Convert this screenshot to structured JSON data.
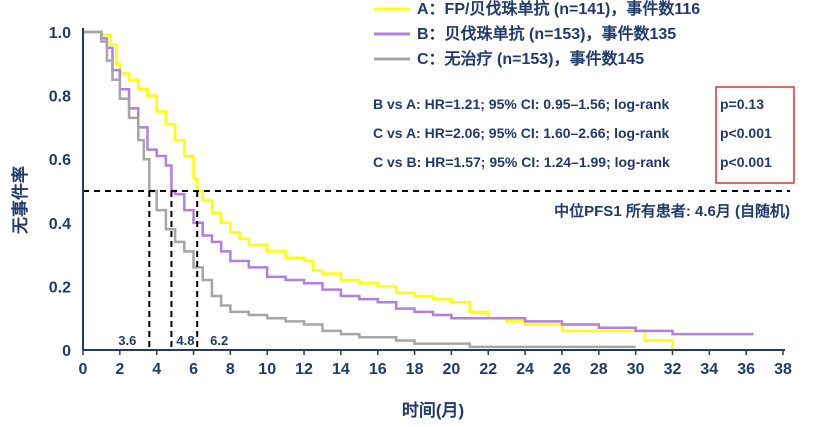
{
  "chart_data": {
    "type": "line",
    "title": "",
    "xlabel": "时间(月)",
    "ylabel": "无事件率",
    "xlim": [
      0,
      38
    ],
    "ylim": [
      0,
      1.0
    ],
    "x_ticks": [
      0,
      2,
      4,
      6,
      8,
      10,
      12,
      14,
      16,
      18,
      20,
      22,
      24,
      26,
      28,
      30,
      32,
      34,
      36,
      38
    ],
    "x_tick_labels": [
      "0",
      "2",
      "4",
      "6",
      "8",
      "10",
      "12",
      "14",
      "16",
      "18",
      "20",
      "22",
      "24",
      "26",
      "28",
      "30",
      "32",
      "34",
      "36",
      "38"
    ],
    "y_ticks": [
      0,
      0.2,
      0.4,
      0.6,
      0.8,
      1.0
    ],
    "y_tick_labels": [
      "0",
      "0.2",
      "0.4",
      "0.6",
      "0.8",
      "1.0"
    ],
    "grid": false,
    "legend_position": "top-right",
    "series": [
      {
        "name": "A：FP/贝伐珠单抗 (n=141)，事件数116",
        "color": "#ffff00",
        "x": [
          0,
          1,
          1.5,
          1.8,
          2.0,
          2.5,
          3.0,
          3.5,
          4.0,
          4.5,
          5.0,
          5.5,
          6.0,
          6.2,
          6.5,
          7.0,
          7.5,
          8.0,
          8.5,
          9.0,
          10.0,
          11.0,
          12.0,
          12.5,
          13.0,
          14.0,
          15.0,
          16.0,
          17.0,
          18.0,
          19.0,
          20.0,
          21.0,
          22.0,
          23.0,
          24.0,
          25.0,
          26.0,
          28.0,
          30.0,
          30.5,
          32.0
        ],
        "y": [
          1.0,
          0.99,
          0.96,
          0.9,
          0.87,
          0.85,
          0.82,
          0.8,
          0.75,
          0.71,
          0.66,
          0.61,
          0.54,
          0.5,
          0.47,
          0.43,
          0.4,
          0.37,
          0.35,
          0.33,
          0.31,
          0.29,
          0.28,
          0.25,
          0.24,
          0.22,
          0.21,
          0.2,
          0.18,
          0.17,
          0.16,
          0.15,
          0.12,
          0.1,
          0.09,
          0.08,
          0.08,
          0.06,
          0.06,
          0.06,
          0.03,
          0.0
        ]
      },
      {
        "name": "B：贝伐珠单抗 (n=153)，事件数135",
        "color": "#b07fe0",
        "x": [
          0,
          1,
          1.3,
          1.6,
          2.0,
          2.5,
          3.0,
          3.5,
          4.0,
          4.5,
          4.8,
          5.0,
          5.5,
          6.0,
          6.5,
          7.0,
          7.5,
          8.0,
          9.0,
          10.0,
          11.0,
          12.0,
          13.0,
          14.0,
          15.0,
          16.0,
          17.0,
          18.0,
          19.0,
          20.0,
          22.0,
          24.0,
          26.0,
          28.0,
          30.0,
          32.0,
          34.0,
          36.4
        ],
        "y": [
          1.0,
          0.98,
          0.95,
          0.88,
          0.82,
          0.76,
          0.7,
          0.63,
          0.61,
          0.58,
          0.5,
          0.49,
          0.44,
          0.4,
          0.36,
          0.34,
          0.31,
          0.28,
          0.26,
          0.23,
          0.22,
          0.21,
          0.19,
          0.17,
          0.16,
          0.15,
          0.13,
          0.12,
          0.11,
          0.1,
          0.1,
          0.09,
          0.08,
          0.07,
          0.06,
          0.05,
          0.05,
          0.05
        ]
      },
      {
        "name": "C：无治疗 (n=153)，事件数145",
        "color": "#a6a6a6",
        "x": [
          0,
          1.0,
          1.3,
          1.6,
          2.0,
          2.5,
          3.0,
          3.3,
          3.6,
          4.0,
          4.5,
          5.0,
          5.5,
          6.0,
          6.5,
          7.0,
          7.5,
          8.0,
          9.0,
          10.0,
          11.0,
          12.0,
          13.0,
          14.0,
          15.0,
          16.0,
          17.0,
          18.0,
          20.0,
          21.0,
          24.0,
          27.0,
          30.0
        ],
        "y": [
          1.0,
          0.97,
          0.91,
          0.85,
          0.79,
          0.73,
          0.66,
          0.6,
          0.5,
          0.44,
          0.38,
          0.34,
          0.31,
          0.26,
          0.22,
          0.17,
          0.14,
          0.12,
          0.11,
          0.1,
          0.09,
          0.08,
          0.06,
          0.05,
          0.04,
          0.04,
          0.03,
          0.02,
          0.02,
          0.01,
          0.01,
          0.01,
          0.01
        ]
      }
    ],
    "reference_line": {
      "y": 0.5
    },
    "medians": [
      {
        "x": 3.6,
        "label": "3.6"
      },
      {
        "x": 4.8,
        "label": "4.8"
      },
      {
        "x": 6.2,
        "label": "6.2"
      }
    ],
    "annotations": {
      "comparisons": [
        {
          "text": "B vs A: HR=1.21; 95% CI: 0.95–1.56; log-rank",
          "p": "p=0.13"
        },
        {
          "text": "C vs A: HR=2.06; 95% CI: 1.60–2.66; log-rank",
          "p": "p<0.001"
        },
        {
          "text": "C vs B: HR=1.57; 95% CI: 1.24–1.99; log-rank",
          "p": "p<0.001"
        }
      ],
      "median_note": "中位PFS1 所有患者: 4.6月 (自随机)",
      "p_box_color": "#e03030"
    },
    "colors": {
      "text": "#1f3a6e",
      "axis": "#1f3a6e"
    }
  }
}
